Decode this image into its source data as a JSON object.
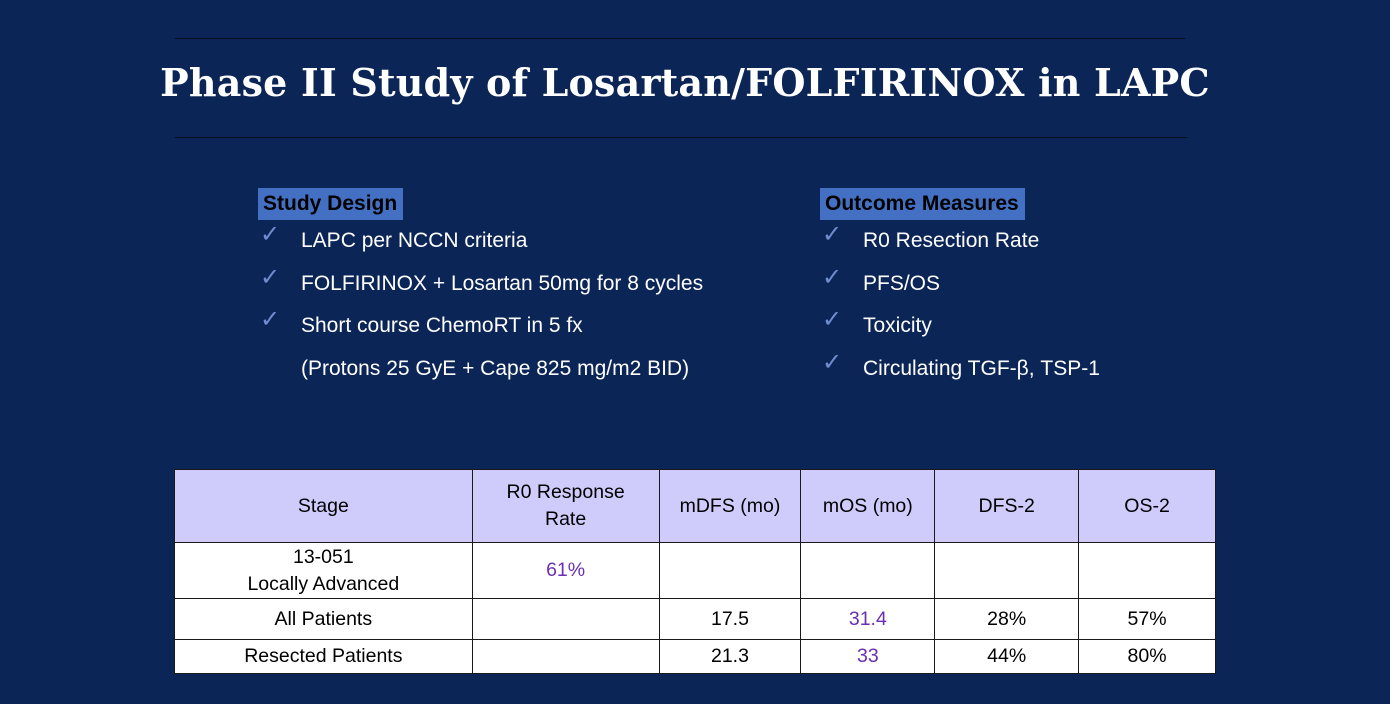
{
  "slide": {
    "title": "Phase II Study of Losartan/FOLFIRINOX in LAPC"
  },
  "study_design": {
    "heading": "Study Design",
    "items": [
      "LAPC per NCCN criteria",
      "FOLFIRINOX + Losartan 50mg for 8 cycles",
      "Short course ChemoRT in 5 fx",
      "(Protons 25 GyE + Cape 825 mg/m2 BID)"
    ]
  },
  "outcome_measures": {
    "heading": "Outcome Measures",
    "items": [
      "R0 Resection Rate",
      "PFS/OS",
      "Toxicity",
      "Circulating TGF-β, TSP-1"
    ]
  },
  "table": {
    "headers": [
      "Stage",
      "R0 Response",
      "Rate",
      "mDFS (mo)",
      "mOS (mo)",
      "DFS-2",
      "OS-2"
    ],
    "rows": [
      {
        "stage_line1": "13-051",
        "stage_line2": "Locally Advanced",
        "r0": "61%",
        "mdfs": "",
        "mos": "",
        "dfs2": "",
        "os2": ""
      },
      {
        "stage": "All Patients",
        "r0": "",
        "mdfs": "17.5",
        "mos": "31.4",
        "dfs2": "28%",
        "os2": "57%"
      },
      {
        "stage": "Resected Patients",
        "r0": "",
        "mdfs": "21.3",
        "mos": "33",
        "dfs2": "44%",
        "os2": "80%"
      }
    ],
    "highlight_color": "#6b2fb3",
    "header_bg": "#cfccfc"
  },
  "colors": {
    "background": "#0b2557",
    "heading_bg": "#4470c4",
    "check": "#6f8dcf"
  }
}
